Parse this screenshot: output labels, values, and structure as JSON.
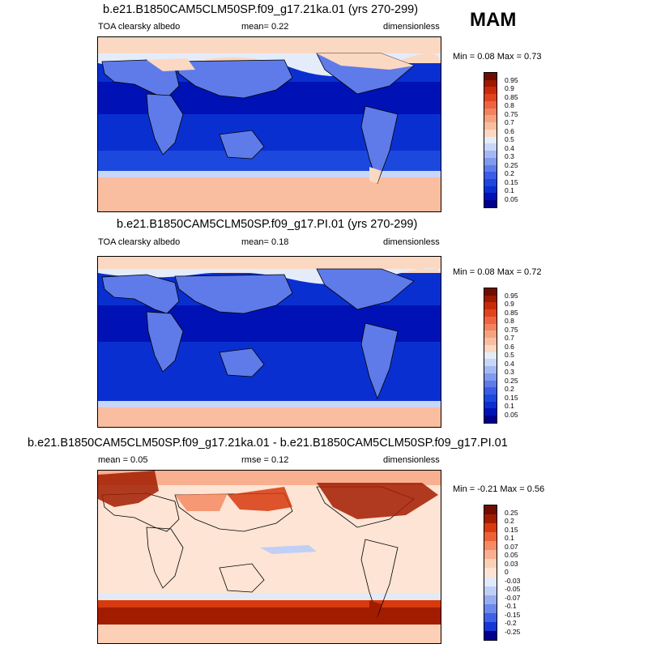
{
  "season": "MAM",
  "colors": {
    "land_outline": "#000000",
    "cool_scale": [
      "#00008c",
      "#0012b5",
      "#0a2fd1",
      "#1c48dd",
      "#3b5ce6",
      "#5e7be9",
      "#809aee",
      "#a5b8f3",
      "#c8d6f7",
      "#e4ecfa",
      "#fbd8c2",
      "#f9bda0",
      "#f6a27f",
      "#f2835d",
      "#ee6342",
      "#e1431f",
      "#c82b09",
      "#9c1a00",
      "#6f0d00"
    ],
    "diff_scale": [
      "#00008c",
      "#1636d8",
      "#3f61e6",
      "#6b88ec",
      "#96adf1",
      "#c0cff6",
      "#e0eafb",
      "#fde4d4",
      "#fcd0b6",
      "#f9b090",
      "#f48b63",
      "#ec6236",
      "#d63a0e",
      "#a21c00",
      "#6f0d00"
    ]
  },
  "panels": [
    {
      "title": "b.e21.B1850CAM5CLM50SP.f09_g17.21ka.01 (yrs 270-299)",
      "left_label": "TOA clearsky albedo",
      "mid_label": "mean=   0.22",
      "right_label": "dimensionless",
      "minmax": "Min =  0.08 Max =   0.73",
      "colorbar_labels": [
        "0.95",
        "0.9",
        "0.85",
        "0.8",
        "0.75",
        "0.7",
        "0.6",
        "0.5",
        "0.4",
        "0.3",
        "0.25",
        "0.2",
        "0.15",
        "0.1",
        "0.05"
      ],
      "map": {
        "mean": 0.22,
        "min": 0.08,
        "max": 0.73,
        "palette": "cool"
      }
    },
    {
      "title": "b.e21.B1850CAM5CLM50SP.f09_g17.PI.01 (yrs 270-299)",
      "left_label": "TOA clearsky albedo",
      "mid_label": "mean=   0.18",
      "right_label": "dimensionless",
      "minmax": "Min =  0.08 Max =   0.72",
      "colorbar_labels": [
        "0.95",
        "0.9",
        "0.85",
        "0.8",
        "0.75",
        "0.7",
        "0.6",
        "0.5",
        "0.4",
        "0.3",
        "0.25",
        "0.2",
        "0.15",
        "0.1",
        "0.05"
      ],
      "map": {
        "mean": 0.18,
        "min": 0.08,
        "max": 0.72,
        "palette": "cool"
      }
    },
    {
      "title": "b.e21.B1850CAM5CLM50SP.f09_g17.21ka.01 - b.e21.B1850CAM5CLM50SP.f09_g17.PI.01",
      "left_label": "mean =   0.05",
      "mid_label": "rmse =   0.12",
      "right_label": "dimensionless",
      "minmax": "Min =  -0.21 Max =   0.56",
      "colorbar_labels": [
        "0.25",
        "0.2",
        "0.15",
        "0.1",
        "0.07",
        "0.05",
        "0.03",
        "0",
        "-0.03",
        "-0.05",
        "-0.07",
        "-0.1",
        "-0.15",
        "-0.2",
        "-0.25"
      ],
      "map": {
        "mean": 0.05,
        "rmse": 0.12,
        "min": -0.21,
        "max": 0.56,
        "palette": "diff"
      }
    }
  ]
}
